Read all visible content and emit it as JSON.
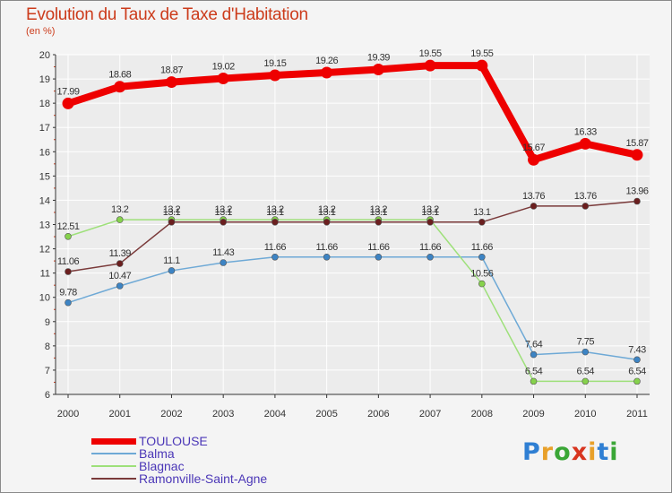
{
  "title": "Evolution du Taux de Taxe d'Habitation",
  "subtitle": "(en %)",
  "logo": {
    "text": "Proxiti",
    "colors": [
      "#2f7fd3",
      "#e8a02a",
      "#3aa636",
      "#d8351f",
      "#e8a02a",
      "#2f7fd3",
      "#3aa636"
    ]
  },
  "colors": {
    "title": "#cc3b1b",
    "legend_text": "#4b37b7",
    "grid": "#ffffff",
    "axis": "#333333",
    "tick_accent": "#cc3b1b"
  },
  "chart_data": {
    "type": "line",
    "title": "Evolution du Taux de Taxe d'Habitation",
    "ylabel": "(en %)",
    "xlabel": "",
    "categories": [
      "2000",
      "2001",
      "2002",
      "2003",
      "2004",
      "2005",
      "2006",
      "2007",
      "2008",
      "2009",
      "2010",
      "2011"
    ],
    "ylim": [
      6,
      20
    ],
    "yticks": [
      "6",
      "7",
      "8",
      "9",
      "10",
      "11",
      "12",
      "13",
      "14",
      "15",
      "16",
      "17",
      "18",
      "19",
      "20"
    ],
    "grid": true,
    "legend_position": "bottom-left",
    "series": [
      {
        "name": "TOULOUSE",
        "color": "#ee0000",
        "marker": "#ee0000",
        "values": [
          17.99,
          18.68,
          18.87,
          19.02,
          19.15,
          19.26,
          19.39,
          19.55,
          19.55,
          15.67,
          16.33,
          15.87
        ],
        "labels": [
          "17.99",
          "18.68",
          "18.87",
          "19.02",
          "19.15",
          "19.26",
          "19.39",
          "19.55",
          "19.55",
          "15.67",
          "16.33",
          "15.87"
        ],
        "emphasis": true
      },
      {
        "name": "Balma",
        "color": "#6ea9d6",
        "marker": "#3d84c4",
        "values": [
          9.78,
          10.47,
          11.1,
          11.43,
          11.66,
          11.66,
          11.66,
          11.66,
          11.66,
          7.64,
          7.75,
          7.43
        ],
        "labels": [
          "9.78",
          "10.47",
          "11.1",
          "11.43",
          "11.66",
          "11.66",
          "11.66",
          "11.66",
          "11.66",
          "7.64",
          "7.75",
          "7.43"
        ]
      },
      {
        "name": "Blagnac",
        "color": "#9ee07a",
        "marker": "#86d24c",
        "values": [
          12.51,
          13.2,
          13.2,
          13.2,
          13.2,
          13.2,
          13.2,
          13.2,
          10.56,
          6.54,
          6.54,
          6.54
        ],
        "labels": [
          "12.51",
          "13.2",
          "13.2",
          "13.2",
          "13.2",
          "13.2",
          "13.2",
          "13.2",
          "10.56",
          "6.54",
          "6.54",
          "6.54"
        ]
      },
      {
        "name": "Ramonville-Saint-Agne",
        "color": "#7a3a3a",
        "marker": "#6b1f1f",
        "values": [
          11.06,
          11.39,
          13.1,
          13.1,
          13.1,
          13.1,
          13.1,
          13.1,
          13.1,
          13.76,
          13.76,
          13.96
        ],
        "labels": [
          "11.06",
          "11.39",
          "13.1",
          "13.1",
          "13.1",
          "13.1",
          "13.1",
          "13.1",
          "13.1",
          "13.76",
          "13.76",
          "13.96"
        ]
      }
    ]
  }
}
